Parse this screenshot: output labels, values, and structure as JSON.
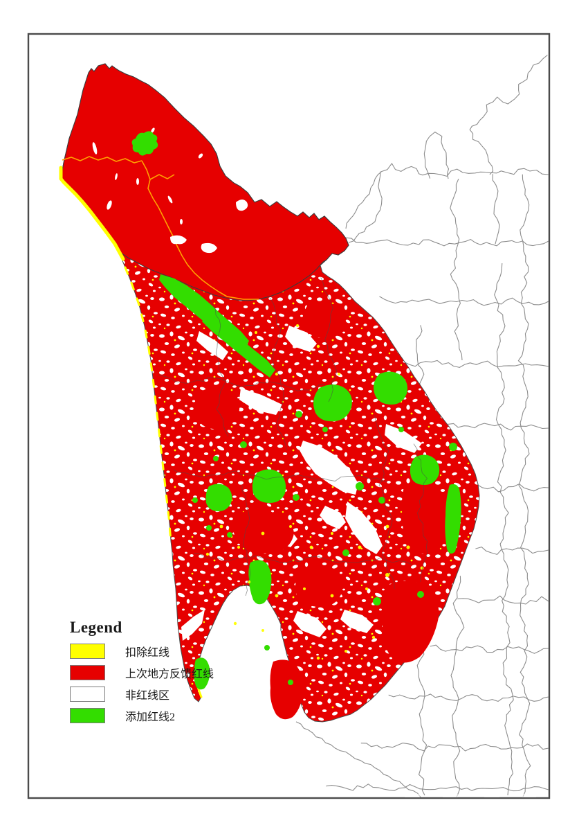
{
  "legend": {
    "title": "Legend",
    "items": [
      {
        "label": "扣除红线",
        "color": "#ffff00"
      },
      {
        "label": "上次地方反馈红线",
        "color": "#e60000"
      },
      {
        "label": "非红线区",
        "color": "#ffffff"
      },
      {
        "label": "添加红线2",
        "color": "#33dd00"
      }
    ]
  },
  "map": {
    "colors": {
      "deducted_redline_yellow": "#ffff00",
      "previous_feedback_redline_red": "#e60000",
      "non_redline_white": "#ffffff",
      "added_redline_green": "#33dd00",
      "internal_boundary_orange": "#ffa200",
      "neighbor_boundary_gray": "#8c8c8c",
      "province_outline_dark": "#4a4a4a",
      "frame_border": "#4b4b4b"
    }
  }
}
